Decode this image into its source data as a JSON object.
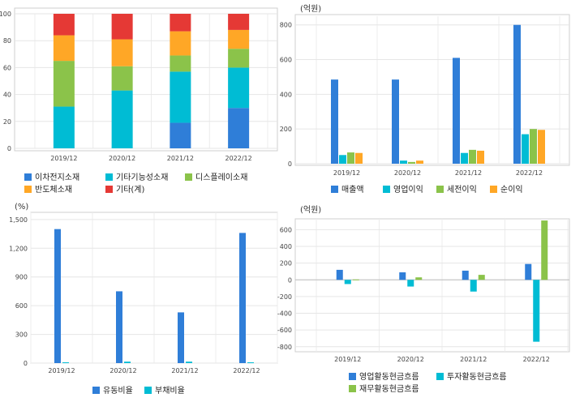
{
  "chart_data": [
    {
      "type": "bar",
      "stacked": true,
      "categories": [
        "2019/12",
        "2020/12",
        "2021/12",
        "2022/12"
      ],
      "ylim": [
        0,
        100
      ],
      "yticks": [
        "0",
        "20",
        "40",
        "60",
        "80",
        "100"
      ],
      "unit": "",
      "legend_position": "bottom",
      "series": [
        {
          "name": "이차전지소재",
          "color": "#2f7ed8",
          "values": [
            0,
            0,
            19,
            30
          ]
        },
        {
          "name": "기타기능성소재",
          "color": "#00bcd4",
          "values": [
            31,
            43,
            38,
            30
          ]
        },
        {
          "name": "디스플레이소재",
          "color": "#8bc34a",
          "values": [
            34,
            18,
            12,
            14
          ]
        },
        {
          "name": "반도체소재",
          "color": "#ffa726",
          "values": [
            19,
            20,
            18,
            14
          ]
        },
        {
          "name": "기타(계)",
          "color": "#e53935",
          "values": [
            16,
            19,
            13,
            12
          ]
        }
      ]
    },
    {
      "type": "bar",
      "categories": [
        "2019/12",
        "2020/12",
        "2021/12",
        "2022/12"
      ],
      "ylim": [
        0,
        850
      ],
      "yticks": [
        "0",
        "200",
        "400",
        "600",
        "800"
      ],
      "unit": "(억원)",
      "legend_position": "bottom",
      "series": [
        {
          "name": "매출액",
          "color": "#2f7ed8",
          "values": [
            485,
            485,
            610,
            800
          ]
        },
        {
          "name": "영업이익",
          "color": "#00bcd4",
          "values": [
            50,
            18,
            62,
            170
          ]
        },
        {
          "name": "세전이익",
          "color": "#8bc34a",
          "values": [
            65,
            10,
            80,
            200
          ]
        },
        {
          "name": "순이익",
          "color": "#ffa726",
          "values": [
            62,
            18,
            75,
            195
          ]
        }
      ]
    },
    {
      "type": "bar",
      "categories": [
        "2019/12",
        "2020/12",
        "2021/12",
        "2022/12"
      ],
      "ylim": [
        0,
        1575
      ],
      "yticks": [
        "0",
        "300",
        "600",
        "900",
        "1,200",
        "1,500"
      ],
      "unit": "(%)",
      "legend_position": "bottom",
      "series": [
        {
          "name": "유동비율",
          "color": "#2f7ed8",
          "values": [
            1400,
            750,
            530,
            1360
          ]
        },
        {
          "name": "부채비율",
          "color": "#00bcd4",
          "values": [
            8,
            15,
            15,
            8
          ]
        }
      ]
    },
    {
      "type": "bar",
      "categories": [
        "2019/12",
        "2020/12",
        "2021/12",
        "2022/12"
      ],
      "ylim": [
        -860,
        730
      ],
      "yticks": [
        "-800",
        "-600",
        "-400",
        "-200",
        "0",
        "200",
        "400",
        "600"
      ],
      "unit": "(억원)",
      "legend_position": "bottom",
      "series": [
        {
          "name": "영업활동현금흐름",
          "color": "#2f7ed8",
          "values": [
            120,
            90,
            110,
            190
          ]
        },
        {
          "name": "투자활동현금흐름",
          "color": "#00bcd4",
          "values": [
            -50,
            -80,
            -140,
            -740
          ]
        },
        {
          "name": "재무활동현금흐름",
          "color": "#8bc34a",
          "values": [
            5,
            30,
            60,
            710
          ]
        }
      ]
    }
  ]
}
